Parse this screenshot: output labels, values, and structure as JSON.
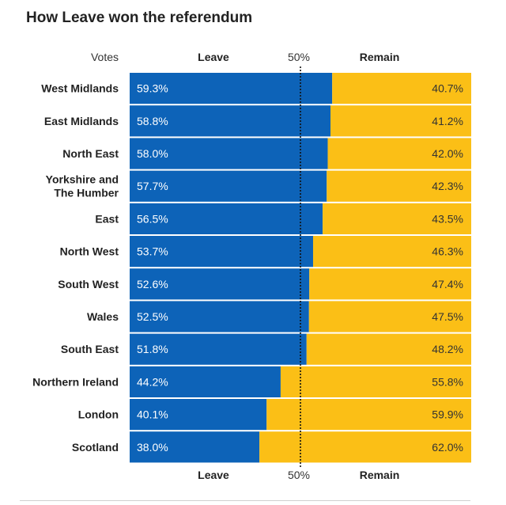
{
  "page": {
    "title": "How Leave won the referendum"
  },
  "headers": {
    "votes": "Votes",
    "leave": "Leave",
    "fifty": "50%",
    "remain": "Remain"
  },
  "colors": {
    "leave": "#0d63b8",
    "remain": "#fbbf16",
    "midline": "#111111",
    "background": "#ffffff"
  },
  "chart_data": {
    "type": "bar",
    "orientation": "horizontal",
    "stacked": true,
    "normalized": true,
    "title": "How Leave won the referendum",
    "xlabel": "Votes",
    "xlim": [
      0,
      100
    ],
    "reference_line": 50,
    "reference_label": "50%",
    "series_names": [
      "Leave",
      "Remain"
    ],
    "rows": [
      {
        "label": [
          "West Midlands"
        ],
        "leave": 59.3,
        "remain": 40.7,
        "leave_text": "59.3%",
        "remain_text": "40.7%"
      },
      {
        "label": [
          "East Midlands"
        ],
        "leave": 58.8,
        "remain": 41.2,
        "leave_text": "58.8%",
        "remain_text": "41.2%"
      },
      {
        "label": [
          "North East"
        ],
        "leave": 58.0,
        "remain": 42.0,
        "leave_text": "58.0%",
        "remain_text": "42.0%"
      },
      {
        "label": [
          "Yorkshire and",
          "The Humber"
        ],
        "leave": 57.7,
        "remain": 42.3,
        "leave_text": "57.7%",
        "remain_text": "42.3%"
      },
      {
        "label": [
          "East"
        ],
        "leave": 56.5,
        "remain": 43.5,
        "leave_text": "56.5%",
        "remain_text": "43.5%"
      },
      {
        "label": [
          "North West"
        ],
        "leave": 53.7,
        "remain": 46.3,
        "leave_text": "53.7%",
        "remain_text": "46.3%"
      },
      {
        "label": [
          "South West"
        ],
        "leave": 52.6,
        "remain": 47.4,
        "leave_text": "52.6%",
        "remain_text": "47.4%"
      },
      {
        "label": [
          "Wales"
        ],
        "leave": 52.5,
        "remain": 47.5,
        "leave_text": "52.5%",
        "remain_text": "47.5%"
      },
      {
        "label": [
          "South East"
        ],
        "leave": 51.8,
        "remain": 48.2,
        "leave_text": "51.8%",
        "remain_text": "48.2%"
      },
      {
        "label": [
          "Northern Ireland"
        ],
        "leave": 44.2,
        "remain": 55.8,
        "leave_text": "44.2%",
        "remain_text": "55.8%"
      },
      {
        "label": [
          "London"
        ],
        "leave": 40.1,
        "remain": 59.9,
        "leave_text": "40.1%",
        "remain_text": "59.9%"
      },
      {
        "label": [
          "Scotland"
        ],
        "leave": 38.0,
        "remain": 62.0,
        "leave_text": "38.0%",
        "remain_text": "62.0%"
      }
    ]
  }
}
